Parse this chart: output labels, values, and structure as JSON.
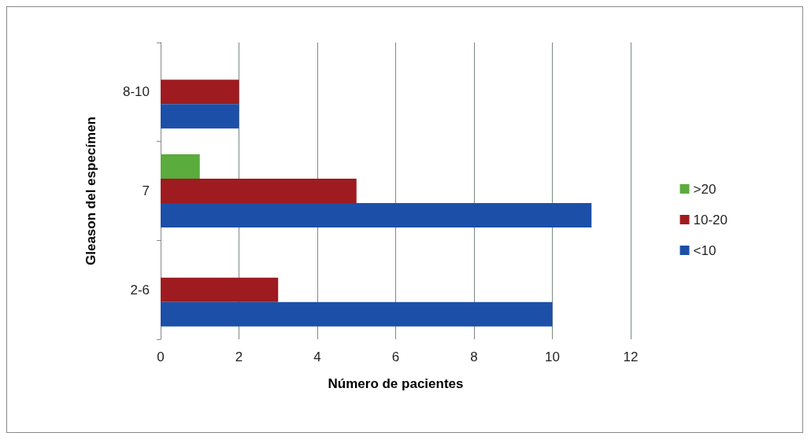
{
  "chart_data": {
    "type": "bar",
    "orientation": "horizontal",
    "xlabel": "Número de pacientes",
    "ylabel": "Gleason del especímen",
    "categories": [
      "8-10",
      "7",
      "2-6"
    ],
    "series": [
      {
        "name": ">20",
        "color": "#5aac3c",
        "values": [
          null,
          1,
          null
        ]
      },
      {
        "name": "10-20",
        "color": "#9e1b1f",
        "values": [
          2,
          5,
          3
        ]
      },
      {
        "name": "<10",
        "color": "#1c4fa8",
        "values": [
          2,
          11,
          10
        ]
      }
    ],
    "xlim": [
      0,
      12
    ],
    "xticks": [
      0,
      2,
      4,
      6,
      8,
      10,
      12
    ],
    "grid": "x",
    "legend": "right"
  }
}
